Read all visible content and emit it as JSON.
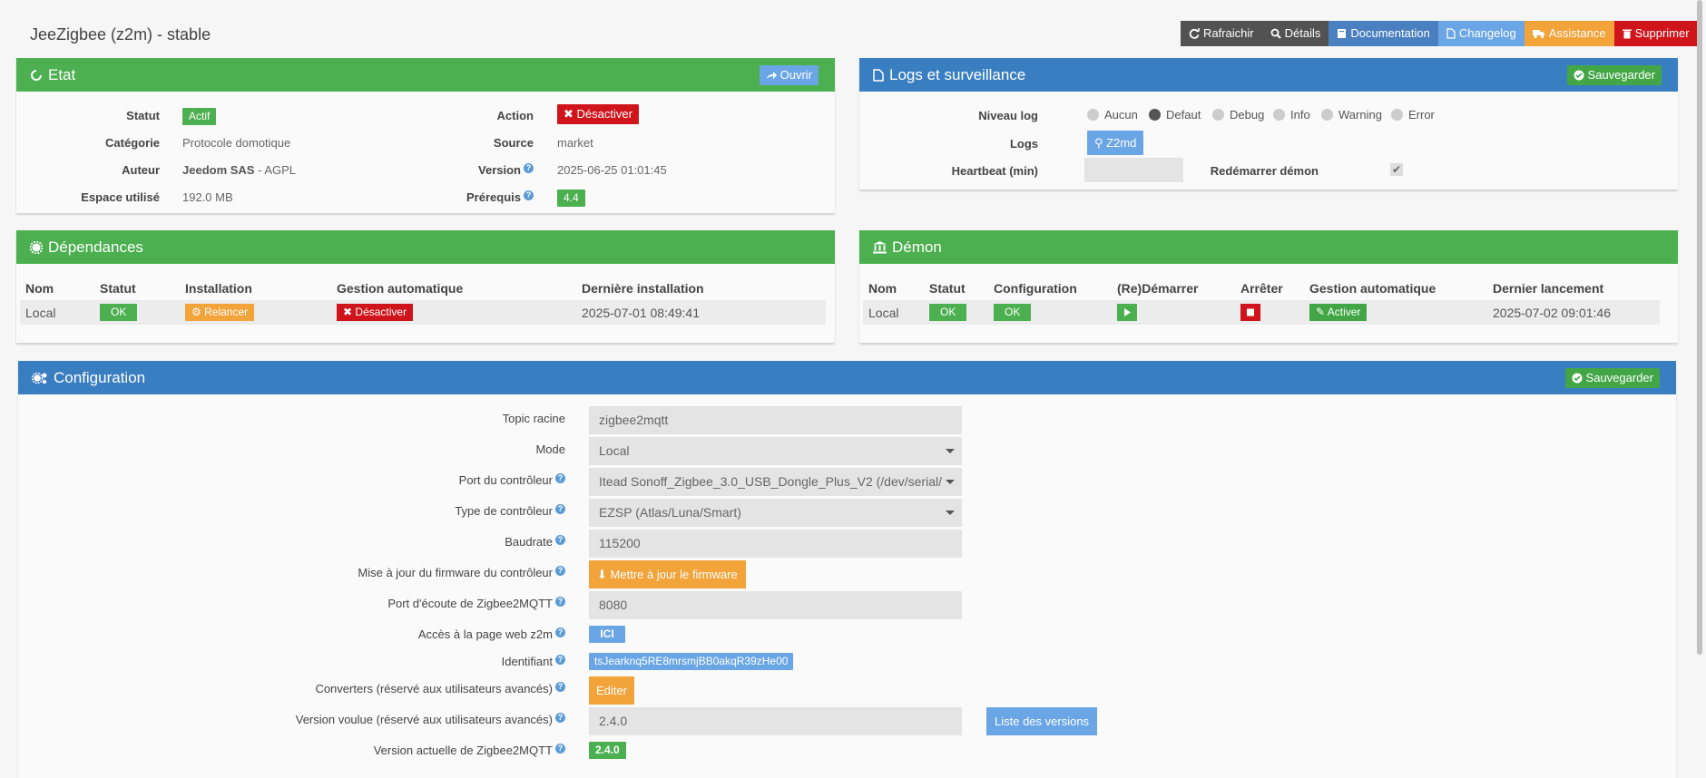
{
  "page_title": "JeeZigbee (z2m) - stable",
  "toolbar": {
    "refresh": "Rafraichir",
    "details": "Détails",
    "documentation": "Documentation",
    "changelog": "Changelog",
    "assistance": "Assistance",
    "delete": "Supprimer"
  },
  "etat": {
    "title": "Etat",
    "open_button": "Ouvrir",
    "statut_label": "Statut",
    "statut_value": "Actif",
    "categorie_label": "Catégorie",
    "categorie_value": "Protocole domotique",
    "auteur_label": "Auteur",
    "auteur_value": "Jeedom SAS",
    "license_value": "- AGPL",
    "espace_label": "Espace utilisé",
    "espace_value": "192.0 MB",
    "action_label": "Action",
    "action_button": "Désactiver",
    "source_label": "Source",
    "source_value": "market",
    "version_label": "Version",
    "version_value": "2025-06-25 01:01:45",
    "prerequis_label": "Prérequis",
    "prerequis_value": "4.4"
  },
  "logs": {
    "title": "Logs et surveillance",
    "save_button": "Sauvegarder",
    "niveau_label": "Niveau log",
    "levels": [
      "Aucun",
      "Defaut",
      "Debug",
      "Info",
      "Warning",
      "Error"
    ],
    "selected_level": "Defaut",
    "logs_label": "Logs",
    "logs_button": "Z2md",
    "heartbeat_label": "Heartbeat (min)",
    "heartbeat_value": "",
    "restart_label": "Redémarrer démon"
  },
  "dependances": {
    "title": "Dépendances",
    "headers": [
      "Nom",
      "Statut",
      "Installation",
      "Gestion automatique",
      "Dernière installation"
    ],
    "row": {
      "nom": "Local",
      "statut": "OK",
      "installation": "Relancer",
      "gestion": "Désactiver",
      "derniere": "2025-07-01 08:49:41"
    }
  },
  "demon": {
    "title": "Démon",
    "headers": [
      "Nom",
      "Statut",
      "Configuration",
      "(Re)Démarrer",
      "Arrêter",
      "Gestion automatique",
      "Dernier lancement"
    ],
    "row": {
      "nom": "Local",
      "statut": "OK",
      "configuration": "OK",
      "gestion": "Activer",
      "dernier": "2025-07-02 09:01:46"
    }
  },
  "configuration": {
    "title": "Configuration",
    "save_button": "Sauvegarder",
    "topic_label": "Topic racine",
    "topic_value": "zigbee2mqtt",
    "mode_label": "Mode",
    "mode_value": "Local",
    "port_label": "Port du contrôleur",
    "port_value": "Itead Sonoff_Zigbee_3.0_USB_Dongle_Plus_V2 (/dev/serial/",
    "type_label": "Type de contrôleur",
    "type_value": "EZSP (Atlas/Luna/Smart)",
    "baud_label": "Baudrate",
    "baud_value": "115200",
    "firmware_label": "Mise à jour du firmware du contrôleur",
    "firmware_button": "Mettre à jour le firmware",
    "listen_label": "Port d'écoute de Zigbee2MQTT",
    "listen_value": "8080",
    "web_label": "Accès à la page web z2m",
    "web_button": "ICI",
    "id_label": "Identifiant",
    "id_value": "tsJearknq5RE8mrsmjBB0akqR39zHe00",
    "conv_label": "Converters (réservé aux utilisateurs avancés)",
    "conv_button": "Editer",
    "wanted_label": "Version voulue (réservé aux utilisateurs avancés)",
    "wanted_value": "2.4.0",
    "versions_button": "Liste des versions",
    "current_label": "Version actuelle de Zigbee2MQTT",
    "current_value": "2.4.0"
  },
  "colors": {
    "green": "#4caf50",
    "blue": "#3a7ec2",
    "red": "#d0141c",
    "orange": "#f2a33a",
    "light_blue": "#6aa6e6"
  }
}
